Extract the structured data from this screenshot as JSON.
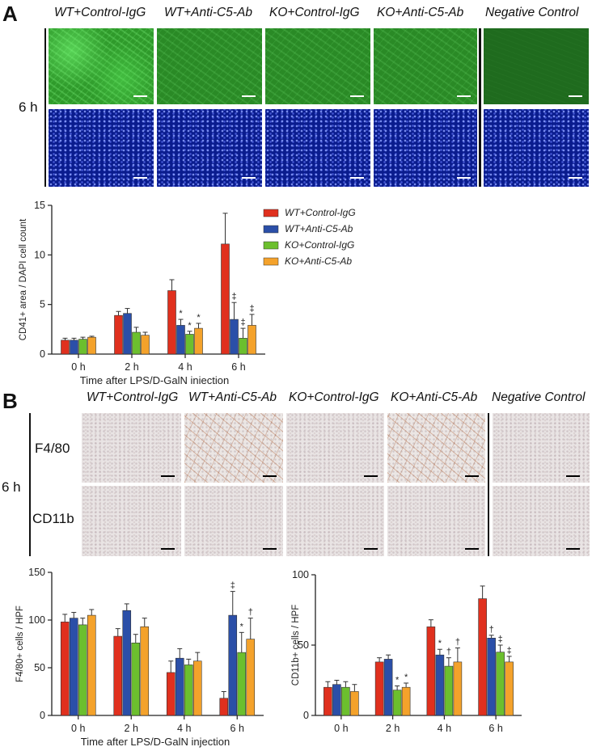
{
  "panel_a": {
    "letter": "A",
    "columns": [
      "WT+Control-IgG",
      "WT+Anti-C5-Ab",
      "KO+Control-IgG",
      "KO+Anti-C5-Ab",
      "Negative Control"
    ],
    "time_label": "6 h"
  },
  "panel_b": {
    "letter": "B",
    "columns": [
      "WT+Control-IgG",
      "WT+Anti-C5-Ab",
      "KO+Control-IgG",
      "KO+Anti-C5-Ab",
      "Negative Control"
    ],
    "rows": [
      "F4/80",
      "CD11b"
    ],
    "time_label": "6 h"
  },
  "colors": {
    "WT+Control-IgG": "#e0301e",
    "WT+Anti-C5-Ab": "#2b4fa8",
    "KO+Control-IgG": "#6cbf2e",
    "KO+Anti-C5-Ab": "#f4a22b"
  },
  "chart_data": [
    {
      "id": "cd41",
      "type": "bar",
      "title": "",
      "xlabel": "Time after LPS/D-GalN injection",
      "ylabel": "CD41+ area / DAPI cell count",
      "categories": [
        "0 h",
        "2 h",
        "4 h",
        "6 h"
      ],
      "ylim": [
        0,
        15
      ],
      "yticks": [
        0,
        5,
        10,
        15
      ],
      "legend": "top-right",
      "series": [
        {
          "name": "WT+Control-IgG",
          "values": [
            1.4,
            3.9,
            6.4,
            11.1
          ],
          "errors": [
            0.2,
            0.4,
            1.1,
            3.1
          ],
          "marks": [
            "",
            "",
            "",
            ""
          ]
        },
        {
          "name": "WT+Anti-C5-Ab",
          "values": [
            1.4,
            4.1,
            2.9,
            3.5
          ],
          "errors": [
            0.2,
            0.5,
            0.6,
            1.7
          ],
          "marks": [
            "",
            "",
            "*",
            "‡"
          ]
        },
        {
          "name": "KO+Control-IgG",
          "values": [
            1.5,
            2.2,
            2.0,
            1.6
          ],
          "errors": [
            0.2,
            0.5,
            0.3,
            1.0
          ],
          "marks": [
            "",
            "",
            "*",
            "‡"
          ]
        },
        {
          "name": "KO+Anti-C5-Ab",
          "values": [
            1.7,
            1.9,
            2.6,
            2.9
          ],
          "errors": [
            0.1,
            0.3,
            0.5,
            1.1
          ],
          "marks": [
            "",
            "",
            "*",
            "‡"
          ]
        }
      ]
    },
    {
      "id": "f480",
      "type": "bar",
      "title": "",
      "xlabel": "Time after LPS/D-GalN injection",
      "ylabel": "F4/80+ cells / HPF",
      "categories": [
        "0 h",
        "2 h",
        "4 h",
        "6 h"
      ],
      "ylim": [
        0,
        150
      ],
      "yticks": [
        0,
        50,
        100,
        150
      ],
      "series": [
        {
          "name": "WT+Control-IgG",
          "values": [
            98,
            83,
            45,
            18
          ],
          "errors": [
            8,
            8,
            12,
            7
          ],
          "marks": [
            "",
            "",
            "",
            ""
          ]
        },
        {
          "name": "WT+Anti-C5-Ab",
          "values": [
            102,
            110,
            60,
            105
          ],
          "errors": [
            6,
            7,
            10,
            25
          ],
          "marks": [
            "",
            "",
            "",
            "‡"
          ]
        },
        {
          "name": "KO+Control-IgG",
          "values": [
            95,
            76,
            53,
            66
          ],
          "errors": [
            7,
            9,
            6,
            21
          ],
          "marks": [
            "",
            "",
            "",
            "*"
          ]
        },
        {
          "name": "KO+Anti-C5-Ab",
          "values": [
            105,
            93,
            57,
            80
          ],
          "errors": [
            6,
            9,
            9,
            22
          ],
          "marks": [
            "",
            "",
            "",
            "†"
          ]
        }
      ]
    },
    {
      "id": "cd11b",
      "type": "bar",
      "title": "",
      "xlabel": "",
      "ylabel": "CD11b+ cells / HPF",
      "categories": [
        "0 h",
        "2 h",
        "4 h",
        "6 h"
      ],
      "ylim": [
        0,
        100
      ],
      "yticks": [
        0,
        50,
        100
      ],
      "series": [
        {
          "name": "WT+Control-IgG",
          "values": [
            20,
            38,
            63,
            83
          ],
          "errors": [
            4,
            3,
            5,
            9
          ],
          "marks": [
            "",
            "",
            "",
            ""
          ]
        },
        {
          "name": "WT+Anti-C5-Ab",
          "values": [
            22,
            40,
            43,
            55
          ],
          "errors": [
            3,
            3,
            4,
            2
          ],
          "marks": [
            "",
            "",
            "*",
            "†"
          ]
        },
        {
          "name": "KO+Control-IgG",
          "values": [
            20,
            18,
            35,
            45
          ],
          "errors": [
            4,
            3,
            6,
            5
          ],
          "marks": [
            "",
            "*",
            "†",
            "‡"
          ]
        },
        {
          "name": "KO+Anti-C5-Ab",
          "values": [
            17,
            20,
            38,
            38
          ],
          "errors": [
            5,
            3,
            10,
            4
          ],
          "marks": [
            "",
            "*",
            "†",
            "‡"
          ]
        }
      ]
    }
  ]
}
